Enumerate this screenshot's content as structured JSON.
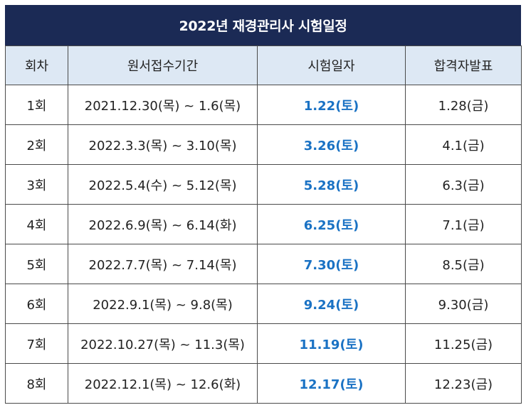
{
  "title": "2022년 재경관리사 시험일정",
  "colors": {
    "header_bg": "#1b2a55",
    "column_header_bg": "#dde8f4",
    "exam_date_text": "#1a72c4"
  },
  "columns": [
    "회차",
    "원서접수기간",
    "시험일자",
    "합격자발표"
  ],
  "rows": [
    {
      "round": "1회",
      "application": "2021.12.30(목) ~ 1.6(목)",
      "exam_date": "1.22(토)",
      "announcement": "1.28(금)"
    },
    {
      "round": "2회",
      "application": "2022.3.3(목) ~ 3.10(목)",
      "exam_date": "3.26(토)",
      "announcement": "4.1(금)"
    },
    {
      "round": "3회",
      "application": "2022.5.4(수) ~ 5.12(목)",
      "exam_date": "5.28(토)",
      "announcement": "6.3(금)"
    },
    {
      "round": "4회",
      "application": "2022.6.9(목) ~ 6.14(화)",
      "exam_date": "6.25(토)",
      "announcement": "7.1(금)"
    },
    {
      "round": "5회",
      "application": "2022.7.7(목) ~ 7.14(목)",
      "exam_date": "7.30(토)",
      "announcement": "8.5(금)"
    },
    {
      "round": "6회",
      "application": "2022.9.1(목) ~ 9.8(목)",
      "exam_date": "9.24(토)",
      "announcement": "9.30(금)"
    },
    {
      "round": "7회",
      "application": "2022.10.27(목) ~ 11.3(목)",
      "exam_date": "11.19(토)",
      "announcement": "11.25(금)"
    },
    {
      "round": "8회",
      "application": "2022.12.1(목) ~ 12.6(화)",
      "exam_date": "12.17(토)",
      "announcement": "12.23(금)"
    }
  ]
}
